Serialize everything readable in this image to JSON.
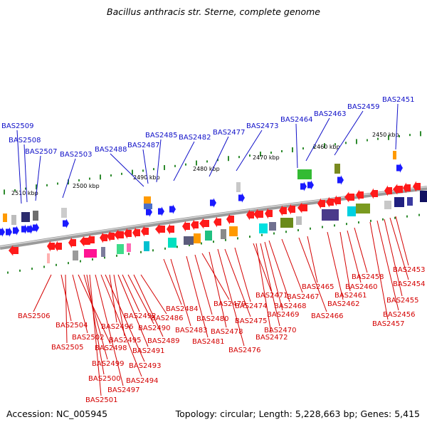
{
  "title": "Bacillus anthracis str. Sterne, complete genome",
  "accession_label": "Accession: NC_005945",
  "topology_label": "Topology: circular; Length: 5,228,663 bp; Genes: 5,415",
  "colors": {
    "top_label": "#1010c8",
    "bottom_label": "#d40000",
    "backbone": "#8a8a8a",
    "tick": "#2e8b2e",
    "forward_gene": "#1a1aff",
    "reverse_gene": "#ff1a1a"
  },
  "scale_ticks": [
    "2510 kbp",
    "2500 kbp",
    "2490 kbp",
    "2480 kbp",
    "2470 kbp",
    "2460 kbp",
    "2450 kbp"
  ],
  "top_labels": [
    "BAS2509",
    "BAS2508",
    "BAS2507",
    "BAS2503",
    "BAS2488",
    "BAS2487",
    "BAS2485",
    "BAS2482",
    "BAS2477",
    "BAS2473",
    "BAS2464",
    "BAS2463",
    "BAS2459",
    "BAS2451"
  ],
  "bottom_labels": [
    "BAS2506",
    "BAS2504",
    "BAS2505",
    "BAS2502",
    "BAS2498",
    "BAS2499",
    "BAS2500",
    "BAS2501",
    "BAS2497",
    "BAS2494",
    "BAS2493",
    "BAS2496",
    "BAS2495",
    "BAS2491",
    "BAS2492",
    "BAS2490",
    "BAS2489",
    "BAS2486",
    "BAS2484",
    "BAS2483",
    "BAS2481",
    "BAS2480",
    "BAS2479",
    "BAS2478",
    "BAS2476",
    "BAS2475",
    "BAS2474",
    "BAS2471",
    "BAS2472",
    "BAS2470",
    "BAS2469",
    "BAS2468",
    "BAS2467",
    "BAS2466",
    "BAS2465",
    "BAS2462",
    "BAS2461",
    "BAS2460",
    "BAS2458",
    "BAS2457",
    "BAS2456",
    "BAS2455",
    "BAS2454",
    "BAS2453"
  ]
}
